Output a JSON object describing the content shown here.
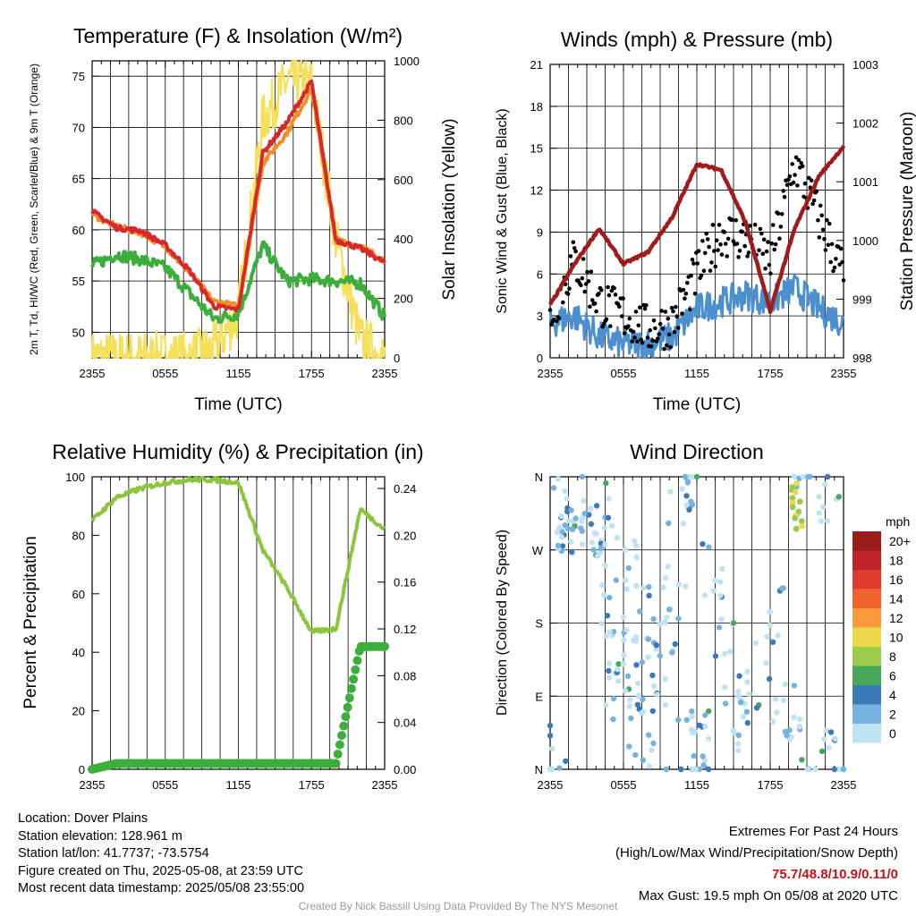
{
  "time_ticks": [
    "2355",
    "0555",
    "1155",
    "1755",
    "2355"
  ],
  "panels": {
    "temperature": {
      "title": "Temperature (F) & Insolation (W/m²)",
      "ylabel_left": "2m T, Td, HI/WC (Red, Green, Scarlet/Blue) & 9m T (Orange)",
      "ylabel_right": "Solar Insolation (Yellow)",
      "xlabel": "Time (UTC)",
      "left_ticks": [
        "50",
        "55",
        "60",
        "65",
        "70",
        "75"
      ],
      "right_ticks": [
        "0",
        "200",
        "400",
        "600",
        "800",
        "1000"
      ]
    },
    "wind": {
      "title": "Winds (mph) & Pressure (mb)",
      "ylabel_left": "Sonic Wind & Gust (Blue, Black)",
      "ylabel_right": "Station Pressure (Maroon)",
      "xlabel": "Time (UTC)",
      "left_ticks": [
        "0",
        "3",
        "6",
        "9",
        "12",
        "15",
        "18",
        "21"
      ],
      "right_ticks": [
        "998",
        "999",
        "1000",
        "1001",
        "1002",
        "1003"
      ]
    },
    "humidity": {
      "title": "Relative Humidity (%) & Precipitation (in)",
      "ylabel_left": "Percent & Precipitation",
      "left_ticks": [
        "0",
        "20",
        "40",
        "60",
        "80",
        "100"
      ],
      "right_ticks": [
        "0.00",
        "0.04",
        "0.08",
        "0.12",
        "0.16",
        "0.20",
        "0.24"
      ]
    },
    "direction": {
      "title": "Wind Direction",
      "ylabel_left": "Direction (Colored By Speed)",
      "left_ticks": [
        "N",
        "E",
        "S",
        "W",
        "N"
      ],
      "legend_title": "mph",
      "legend_labels": [
        "20+",
        "18",
        "16",
        "14",
        "12",
        "10",
        "8",
        "6",
        "4",
        "2",
        "0"
      ],
      "legend_colors": [
        "#9b1c1c",
        "#c0242a",
        "#e03a2c",
        "#f0632c",
        "#f89a3c",
        "#ecd84a",
        "#9acb4a",
        "#47a85a",
        "#3a7ab8",
        "#76b2e0",
        "#bfe3f5"
      ]
    }
  },
  "chart_data": [
    {
      "type": "line",
      "title": "Temperature (F) & Insolation (W/m²)",
      "xlabel": "Time (UTC)",
      "ylabel": "2m T, Td, HI/WC (Red, Green, Scarlet/Blue) & 9m T (Orange)",
      "y2label": "Solar Insolation (Yellow)",
      "x": [
        "2355",
        "0155",
        "0355",
        "0555",
        "0755",
        "0955",
        "1155",
        "1355",
        "1555",
        "1755",
        "1955",
        "2155",
        "2355"
      ],
      "ylim": [
        47.5,
        76.5
      ],
      "y2lim": [
        0,
        1000
      ],
      "series": [
        {
          "color": "#d62a2a",
          "axis": "left",
          "values": [
            61.8,
            60.2,
            59.9,
            58.5,
            56,
            52.5,
            52.2,
            67.5,
            70.5,
            74.5,
            59,
            58.2,
            56.8
          ]
        },
        {
          "color": "#f28e2b",
          "axis": "left",
          "values": [
            61.5,
            60.3,
            59.7,
            58.4,
            55.8,
            53,
            52.5,
            66.5,
            69.5,
            73.8,
            59,
            58.4,
            57
          ]
        },
        {
          "color": "#3cae3c",
          "axis": "left",
          "values": [
            56.5,
            57.6,
            57.1,
            56.3,
            53.8,
            51.3,
            51.8,
            58.5,
            55,
            55.2,
            55,
            54.8,
            51.5
          ]
        },
        {
          "color": "#f6e05a",
          "axis": "right",
          "values": [
            0,
            0,
            0,
            0,
            0,
            30,
            150,
            800,
            930,
            920,
            400,
            60,
            0
          ]
        }
      ]
    },
    {
      "type": "line",
      "title": "Winds (mph) & Pressure (mb)",
      "xlabel": "Time (UTC)",
      "ylabel": "Sonic Wind & Gust (Blue, Black)",
      "y2label": "Station Pressure (Maroon)",
      "x": [
        "2355",
        "0155",
        "0355",
        "0555",
        "0755",
        "0955",
        "1155",
        "1355",
        "1555",
        "1755",
        "1955",
        "2155",
        "2355"
      ],
      "ylim": [
        0,
        21
      ],
      "y2lim": [
        998,
        1003
      ],
      "series": [
        {
          "color": "#4b8fcf",
          "axis": "left",
          "values": [
            2.5,
            3,
            1.5,
            1,
            1,
            1.5,
            3.5,
            4,
            4.5,
            4,
            5,
            3.5,
            2.5
          ]
        },
        {
          "color": "#000000",
          "axis": "left",
          "values": [
            3,
            7,
            4,
            3,
            2,
            2.5,
            6,
            9,
            8.5,
            7,
            14,
            10,
            6
          ]
        },
        {
          "color": "#a01c1c",
          "axis": "right",
          "values": [
            998.9,
            999.6,
            1000.2,
            999.6,
            999.8,
            1000.4,
            1001.3,
            1001.2,
            1000.3,
            998.8,
            1000.2,
            1001.1,
            1001.6
          ]
        }
      ]
    },
    {
      "type": "line",
      "title": "Relative Humidity (%) & Precipitation (in)",
      "ylabel": "Percent & Precipitation",
      "x": [
        "2355",
        "0155",
        "0355",
        "0555",
        "0755",
        "0955",
        "1155",
        "1355",
        "1555",
        "1755",
        "1955",
        "2155",
        "2355"
      ],
      "ylim": [
        0,
        100
      ],
      "y2lim": [
        0,
        0.25
      ],
      "series": [
        {
          "color": "#8cc63f",
          "axis": "left",
          "values": [
            85,
            93,
            96,
            98,
            99,
            99,
            98,
            75,
            62,
            47,
            48,
            89,
            82
          ]
        },
        {
          "color": "#3cae3c",
          "axis": "right",
          "values": [
            0,
            0.005,
            0.005,
            0.005,
            0.005,
            0.005,
            0.005,
            0.005,
            0.005,
            0.005,
            0.005,
            0.105,
            0.105
          ]
        }
      ]
    },
    {
      "type": "scatter",
      "title": "Wind Direction",
      "ylabel": "Direction (Colored By Speed)",
      "x": [
        "2355",
        "0555",
        "1155",
        "1755",
        "2355"
      ],
      "ylim": [
        0,
        360
      ],
      "series": [
        {
          "name": "direction",
          "points": [
            [
              0.5,
              20
            ],
            [
              1,
              330
            ],
            [
              1.3,
              300
            ],
            [
              1.6,
              280
            ],
            [
              2.5,
              340
            ],
            [
              3,
              300
            ],
            [
              3.5,
              260
            ],
            [
              4,
              310
            ],
            [
              4.5,
              200
            ],
            [
              5,
              150
            ],
            [
              5.5,
              90
            ],
            [
              6,
              250
            ],
            [
              6.5,
              120
            ],
            [
              7,
              180
            ],
            [
              7.5,
              60
            ],
            [
              8,
              100
            ],
            [
              8.5,
              40
            ],
            [
              9,
              180
            ],
            [
              9.5,
              150
            ],
            [
              10,
              220
            ],
            [
              10.5,
              340
            ],
            [
              11,
              350
            ],
            [
              11.5,
              30
            ],
            [
              12,
              60
            ],
            [
              12.5,
              10
            ],
            [
              13,
              250
            ],
            [
              14,
              180
            ],
            [
              15,
              90
            ],
            [
              16,
              40
            ],
            [
              17,
              120
            ],
            [
              18,
              200
            ],
            [
              19,
              60
            ],
            [
              20,
              30
            ],
            [
              21,
              350
            ],
            [
              22,
              10
            ],
            [
              23,
              340
            ],
            [
              23.5,
              0
            ]
          ]
        }
      ]
    }
  ],
  "info_left": [
    "Location: Dover Plains",
    "Station elevation: 128.961 m",
    "Station lat/lon: 41.7737; -73.5754",
    "Figure created on Thu, 2025-05-08, at 23:59 UTC",
    "Most recent data timestamp: 2025/05/08 23:55:00"
  ],
  "extremes": {
    "title": "Extremes For Past 24 Hours",
    "subtitle": "(High/Low/Max Wind/Precipitation/Snow Depth)",
    "values": "75.7/48.8/10.9/0.11/0",
    "max_gust": "Max Gust: 19.5 mph On 05/08 at 2020 UTC"
  },
  "credit": "Created By Nick Bassill Using Data Provided By The NYS Mesonet"
}
